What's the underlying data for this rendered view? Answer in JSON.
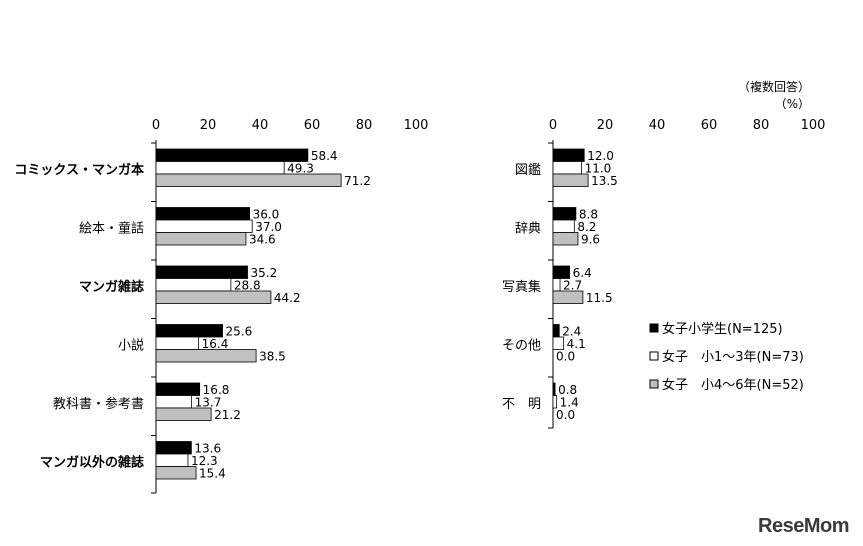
{
  "note": {
    "line1": "（複数回答）",
    "line2": "（%）"
  },
  "logo": "ReseMom",
  "legend": [
    {
      "label": "女子小学生(N=125)",
      "color": "#000000"
    },
    {
      "label": "女子　小1～3年(N=73)",
      "color": "#ffffff"
    },
    {
      "label": "女子　小4～6年(N=52)",
      "color": "#c0c0c0"
    }
  ],
  "chart_data": [
    {
      "type": "bar",
      "orientation": "horizontal",
      "categories": [
        "コミックス・マンガ本",
        "絵本・童話",
        "マンガ雑誌",
        "小説",
        "教科書・参考書",
        "マンガ以外の雑誌"
      ],
      "series": [
        {
          "name": "女子小学生(N=125)",
          "values": [
            58.4,
            36.0,
            35.2,
            25.6,
            16.8,
            13.6
          ]
        },
        {
          "name": "女子　小1～3年(N=73)",
          "values": [
            49.3,
            37.0,
            28.8,
            16.4,
            13.7,
            12.3
          ]
        },
        {
          "name": "女子　小4～6年(N=52)",
          "values": [
            71.2,
            34.6,
            44.2,
            38.5,
            21.2,
            15.4
          ]
        }
      ],
      "xlim": [
        0,
        100
      ],
      "xticks": [
        "0",
        "20",
        "40",
        "60",
        "80",
        "100"
      ],
      "axis_position": "top",
      "grid": false
    },
    {
      "type": "bar",
      "orientation": "horizontal",
      "categories": [
        "図鑑",
        "辞典",
        "写真集",
        "その他",
        "不　明"
      ],
      "series": [
        {
          "name": "女子小学生(N=125)",
          "values": [
            12.0,
            8.8,
            6.4,
            2.4,
            0.8
          ]
        },
        {
          "name": "女子　小1～3年(N=73)",
          "values": [
            11.0,
            8.2,
            2.7,
            4.1,
            1.4
          ]
        },
        {
          "name": "女子　小4～6年(N=52)",
          "values": [
            13.5,
            9.6,
            11.5,
            0.0,
            0.0
          ]
        }
      ],
      "xlim": [
        0,
        100
      ],
      "xticks": [
        "0",
        "20",
        "40",
        "60",
        "80",
        "100"
      ],
      "axis_position": "top",
      "grid": false,
      "legend_position": "bottom-right"
    }
  ]
}
